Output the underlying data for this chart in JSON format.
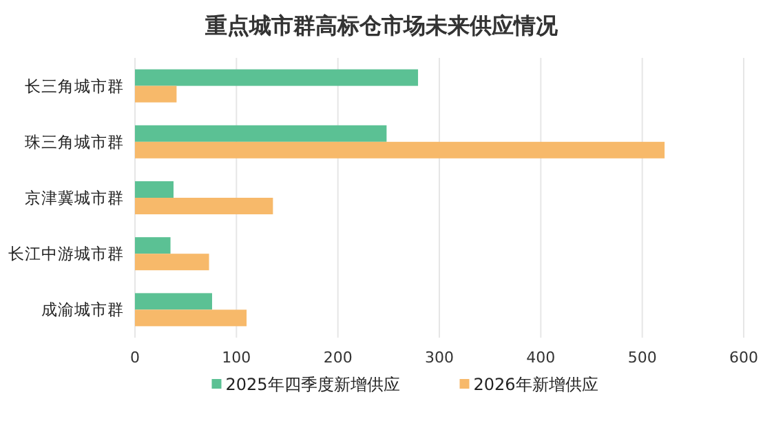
{
  "chart_data": {
    "type": "bar",
    "orientation": "horizontal",
    "title": "重点城市群高标仓市场未来供应情况",
    "categories": [
      "长三角城市群",
      "珠三角城市群",
      "京津冀城市群",
      "长江中游城市群",
      "成渝城市群"
    ],
    "series": [
      {
        "name": "2025年四季度新增供应",
        "color": "#5bc194",
        "values": [
          279,
          248,
          38,
          35,
          76
        ]
      },
      {
        "name": "2026年新增供应",
        "color": "#f7b96a",
        "values": [
          41,
          522,
          136,
          73,
          110
        ]
      }
    ],
    "xlim": [
      0,
      600
    ],
    "xticks": [
      0,
      100,
      200,
      300,
      400,
      500,
      600
    ],
    "grid": "x",
    "legend": "bottom"
  }
}
